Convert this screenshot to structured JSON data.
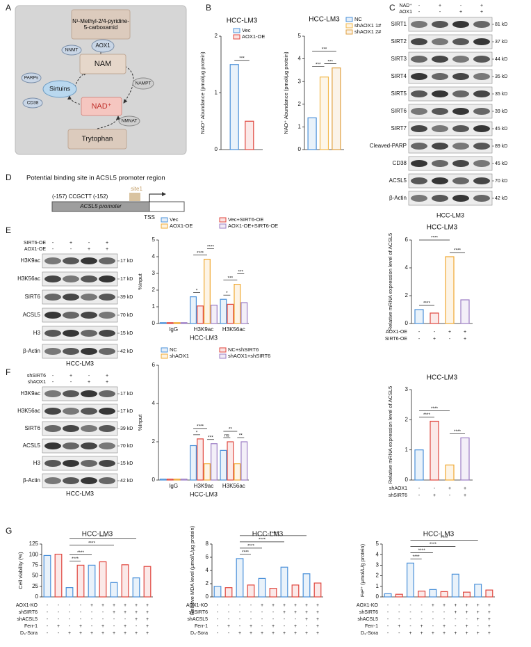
{
  "panel_a": {
    "label": "A",
    "product": "N¹-Methyl-2/4-pyridine-5-carboxamid",
    "nnmt": "NNMT",
    "aox1": "AOX1",
    "nam": "NAM",
    "parps": "PARPs",
    "sirtuins": "Sirtuins",
    "nampt": "NAMPT",
    "cd38": "CD38",
    "nad": "NAD⁺",
    "nmnat": "NMNAT",
    "tryptophan": "Trytophan"
  },
  "panel_b": {
    "label": "B"
  },
  "panel_c": {
    "label": "C",
    "conditions": [
      {
        "label": "NAD⁺",
        "signs": [
          "-",
          "+",
          "-",
          "+"
        ]
      },
      {
        "label": "AOX1",
        "signs": [
          "-",
          "-",
          "+",
          "+"
        ]
      }
    ],
    "bands": [
      {
        "name": "SIRT1",
        "size": "81 kD"
      },
      {
        "name": "SIRT2",
        "size": "37 kD"
      },
      {
        "name": "SIRT3",
        "size": "44 kD"
      },
      {
        "name": "SIRT4",
        "size": "35 kD"
      },
      {
        "name": "SIRT5",
        "size": "35 kD"
      },
      {
        "name": "SIRT6",
        "size": "39 kD"
      },
      {
        "name": "SIRT7",
        "size": "45 kD"
      },
      {
        "name": "Cleaved-PARP",
        "size": "89 kD"
      },
      {
        "name": "CD38",
        "size": "45 kD"
      },
      {
        "name": "ACSL5",
        "size": "70 kD"
      },
      {
        "name": "β-Actin",
        "size": "42 kD"
      }
    ],
    "caption": "HCC-LM3"
  },
  "panel_d": {
    "label": "D",
    "title": "Potential binding site in ACSL5 promoter region",
    "sequence": "(-157) CCGCTT (-152)",
    "site": "site1",
    "promoter": "ACSL5 promoter",
    "tss": "TSS"
  },
  "panel_e": {
    "label": "E",
    "conditions": [
      {
        "label": "SIRT6-OE",
        "signs": [
          "-",
          "+",
          "-",
          "+"
        ]
      },
      {
        "label": "AOX1-OE",
        "signs": [
          "-",
          "-",
          "+",
          "+"
        ]
      }
    ],
    "bands": [
      {
        "name": "H3K9ac",
        "size": "17 kD"
      },
      {
        "name": "H3K56ac",
        "size": "17 kD"
      },
      {
        "name": "SIRT6",
        "size": "39 kD"
      },
      {
        "name": "ACSL5",
        "size": "70 kD"
      },
      {
        "name": "H3",
        "size": "15 kD"
      },
      {
        "name": "β-Actin",
        "size": "42 kD"
      }
    ],
    "caption": "HCC-LM3"
  },
  "panel_f": {
    "label": "F",
    "conditions": [
      {
        "label": "shSIRT6",
        "signs": [
          "-",
          "+",
          "-",
          "+"
        ]
      },
      {
        "label": "shAOX1",
        "signs": [
          "-",
          "-",
          "+",
          "+"
        ]
      }
    ],
    "bands": [
      {
        "name": "H3K9ac",
        "size": "17 kD"
      },
      {
        "name": "H3K56ac",
        "size": "17 kD"
      },
      {
        "name": "SIRT6",
        "size": "39 kD"
      },
      {
        "name": "ACSL5",
        "size": "70 kD"
      },
      {
        "name": "H3",
        "size": "15 kD"
      },
      {
        "name": "β-Actin",
        "size": "42 kD"
      }
    ],
    "caption": "HCC-LM3"
  },
  "panel_g": {
    "label": "G"
  },
  "chart_data": [
    {
      "type": "bar",
      "title": "HCC-LM3",
      "y_label": "NAD⁺ Abundance (pmol/μg protein)",
      "series": [
        {
          "name": "Vec",
          "color": "#4a90d9",
          "values": [
            1.5
          ]
        },
        {
          "name": "AOX1-OE",
          "color": "#e0463e",
          "values": [
            0.5
          ]
        }
      ],
      "ylim": [
        0,
        2
      ],
      "yticks": [
        0,
        1,
        2
      ],
      "annotations": [
        "***"
      ]
    },
    {
      "type": "bar",
      "title": "HCC-LM3",
      "y_label": "NAD⁺ Abundance (pmol/μg protein)",
      "series": [
        {
          "name": "NC",
          "color": "#4a90d9",
          "values": [
            1.4
          ]
        },
        {
          "name": "shAOX1 1#",
          "color": "#f2b84b",
          "values": [
            3.2
          ]
        },
        {
          "name": "shAOX1 2#",
          "color": "#e0a040",
          "values": [
            3.6
          ]
        }
      ],
      "ylim": [
        0,
        5
      ],
      "yticks": [
        0,
        1,
        2,
        3,
        4,
        5
      ],
      "annotations": [
        "***",
        "***",
        "***"
      ]
    },
    {
      "type": "bar",
      "y_label": "%Input",
      "x_label": "HCC-LM3",
      "categories": [
        "IgG",
        "H3K9ac",
        "H3K56ac"
      ],
      "series": [
        {
          "name": "Vec",
          "color": "#4a90d9",
          "values": [
            0.05,
            1.6,
            1.45
          ]
        },
        {
          "name": "Vec+SIRT6-OE",
          "color": "#e0463e",
          "values": [
            0.05,
            1.05,
            1.15
          ]
        },
        {
          "name": "AOX1-OE",
          "color": "#f0a830",
          "values": [
            0.05,
            3.85,
            2.35
          ]
        },
        {
          "name": "AOX1-OE+SIRT6-OE",
          "color": "#9b7cc4",
          "values": [
            0.05,
            1.1,
            1.25
          ]
        }
      ],
      "ylim": [
        0,
        5
      ],
      "yticks": [
        0,
        1,
        2,
        3,
        4,
        5
      ],
      "annotations": [
        "*",
        "****",
        "****",
        "*",
        "***",
        "***"
      ]
    },
    {
      "type": "bar",
      "title": "HCC-LM3",
      "y_label": "Relative mRNA expression level of ACSL5",
      "values": [
        1.0,
        0.75,
        4.8,
        1.7
      ],
      "colors": [
        "#4a90d9",
        "#e0463e",
        "#f0a830",
        "#9b7cc4"
      ],
      "ylim": [
        0,
        6
      ],
      "yticks": [
        0,
        2,
        4,
        6
      ],
      "annotations": [
        "****",
        "****",
        "****"
      ],
      "conditions": [
        {
          "label": "AOX1-OE",
          "signs": [
            "-",
            "-",
            "+",
            "+"
          ]
        },
        {
          "label": "SIRT6-OE",
          "signs": [
            "-",
            "+",
            "-",
            "+"
          ]
        }
      ]
    },
    {
      "type": "bar",
      "y_label": "%Input",
      "x_label": "HCC-LM3",
      "categories": [
        "IgG",
        "H3K9ac",
        "H3K56ac"
      ],
      "series": [
        {
          "name": "NC",
          "color": "#4a90d9",
          "values": [
            0.05,
            1.8,
            1.55
          ]
        },
        {
          "name": "NC+shSIRT6",
          "color": "#e0463e",
          "values": [
            0.05,
            2.15,
            2.0
          ]
        },
        {
          "name": "shAOX1",
          "color": "#f0a830",
          "values": [
            0.05,
            0.85,
            0.85
          ]
        },
        {
          "name": "shAOX1+shSIRT6",
          "color": "#9b7cc4",
          "values": [
            0.05,
            1.9,
            2.0
          ]
        }
      ],
      "ylim": [
        0,
        6
      ],
      "yticks": [
        0,
        2,
        4,
        6
      ],
      "annotations": [
        "*",
        "****",
        "***",
        "ns",
        "**",
        "**"
      ]
    },
    {
      "type": "bar",
      "title": "HCC-LM3",
      "y_label": "Relative mRNA expression level of ACSL5",
      "values": [
        1.0,
        1.95,
        0.5,
        1.4
      ],
      "colors": [
        "#4a90d9",
        "#e0463e",
        "#f0a830",
        "#9b7cc4"
      ],
      "ylim": [
        0,
        3
      ],
      "yticks": [
        0,
        1,
        2,
        3
      ],
      "annotations": [
        "****",
        "****",
        "****"
      ],
      "conditions": [
        {
          "label": "shAOX1",
          "signs": [
            "-",
            "-",
            "+",
            "+"
          ]
        },
        {
          "label": "shSIRT6",
          "signs": [
            "-",
            "+",
            "-",
            "+"
          ]
        }
      ]
    },
    {
      "type": "bar",
      "title": "HCC-LM3",
      "y_label": "Cell viability (%)",
      "values": [
        98,
        101,
        22,
        75,
        75,
        83,
        34,
        76,
        45,
        72
      ],
      "colors": [
        "#4a90d9",
        "#e0463e",
        "#4a90d9",
        "#e0463e",
        "#4a90d9",
        "#e0463e",
        "#4a90d9",
        "#e0463e",
        "#4a90d9",
        "#e0463e"
      ],
      "ylim": [
        0,
        125
      ],
      "yticks": [
        0,
        25,
        50,
        75,
        100,
        125
      ],
      "annotations": [
        "****",
        "****",
        "****",
        "****"
      ],
      "conditions": [
        {
          "label": "AOX1-KO",
          "signs": [
            "-",
            "-",
            "-",
            "-",
            "+",
            "+",
            "+",
            "+",
            "+",
            "+"
          ]
        },
        {
          "label": "shSIRT6",
          "signs": [
            "-",
            "-",
            "-",
            "-",
            "-",
            "-",
            "+",
            "+",
            "+",
            "+"
          ]
        },
        {
          "label": "shACSL5",
          "signs": [
            "-",
            "-",
            "-",
            "-",
            "-",
            "-",
            "-",
            "-",
            "+",
            "+"
          ]
        },
        {
          "label": "Ferr-1",
          "signs": [
            "-",
            "+",
            "-",
            "+",
            "-",
            "+",
            "-",
            "+",
            "-",
            "+"
          ]
        },
        {
          "label": "D₃-Sora",
          "signs": [
            "-",
            "-",
            "+",
            "+",
            "+",
            "+",
            "+",
            "+",
            "+",
            "+"
          ]
        }
      ]
    },
    {
      "type": "bar",
      "title": "HCC-LM3",
      "y_label": "Relative MDA level (μmol/L/μg protein)",
      "values": [
        1.6,
        1.4,
        5.8,
        1.8,
        2.8,
        1.3,
        4.5,
        1.8,
        3.5,
        2.1
      ],
      "colors": [
        "#4a90d9",
        "#e0463e",
        "#4a90d9",
        "#e0463e",
        "#4a90d9",
        "#e0463e",
        "#4a90d9",
        "#e0463e",
        "#4a90d9",
        "#e0463e"
      ],
      "ylim": [
        0,
        8
      ],
      "yticks": [
        0,
        2,
        4,
        6,
        8
      ],
      "annotations": [
        "****",
        "****",
        "****",
        "****"
      ],
      "conditions": [
        {
          "label": "AOX1-KO",
          "signs": [
            "-",
            "-",
            "-",
            "-",
            "+",
            "+",
            "+",
            "+",
            "+",
            "+"
          ]
        },
        {
          "label": "shSIRT6",
          "signs": [
            "-",
            "-",
            "-",
            "-",
            "-",
            "-",
            "+",
            "+",
            "+",
            "+"
          ]
        },
        {
          "label": "shACSL5",
          "signs": [
            "-",
            "-",
            "-",
            "-",
            "-",
            "-",
            "-",
            "-",
            "+",
            "+"
          ]
        },
        {
          "label": "Ferr-1",
          "signs": [
            "-",
            "+",
            "-",
            "+",
            "-",
            "+",
            "-",
            "+",
            "-",
            "+"
          ]
        },
        {
          "label": "D₃-Sora",
          "signs": [
            "-",
            "-",
            "+",
            "+",
            "+",
            "+",
            "+",
            "+",
            "+",
            "+"
          ]
        }
      ]
    },
    {
      "type": "bar",
      "title": "HCC-LM3",
      "y_label": "Fe²⁺ (μmol/L/g protein)",
      "values": [
        0.3,
        0.25,
        3.2,
        0.55,
        0.7,
        0.5,
        2.15,
        0.45,
        1.2,
        0.65
      ],
      "colors": [
        "#4a90d9",
        "#e0463e",
        "#4a90d9",
        "#e0463e",
        "#4a90d9",
        "#e0463e",
        "#4a90d9",
        "#e0463e",
        "#4a90d9",
        "#e0463e"
      ],
      "ylim": [
        0,
        5
      ],
      "yticks": [
        0,
        1,
        2,
        3,
        4,
        5
      ],
      "annotations": [
        "****",
        "****",
        "****",
        "****"
      ],
      "conditions": [
        {
          "label": "AOX1-KO",
          "signs": [
            "-",
            "-",
            "-",
            "-",
            "+",
            "+",
            "+",
            "+",
            "+",
            "+"
          ]
        },
        {
          "label": "shSIRT6",
          "signs": [
            "-",
            "-",
            "-",
            "-",
            "-",
            "-",
            "+",
            "+",
            "+",
            "+"
          ]
        },
        {
          "label": "shACSL5",
          "signs": [
            "-",
            "-",
            "-",
            "-",
            "-",
            "-",
            "-",
            "-",
            "+",
            "+"
          ]
        },
        {
          "label": "Ferr-1",
          "signs": [
            "-",
            "+",
            "-",
            "+",
            "-",
            "+",
            "-",
            "+",
            "-",
            "+"
          ]
        },
        {
          "label": "D₃-Sora",
          "signs": [
            "-",
            "-",
            "+",
            "+",
            "+",
            "+",
            "+",
            "+",
            "+",
            "+"
          ]
        }
      ]
    }
  ]
}
